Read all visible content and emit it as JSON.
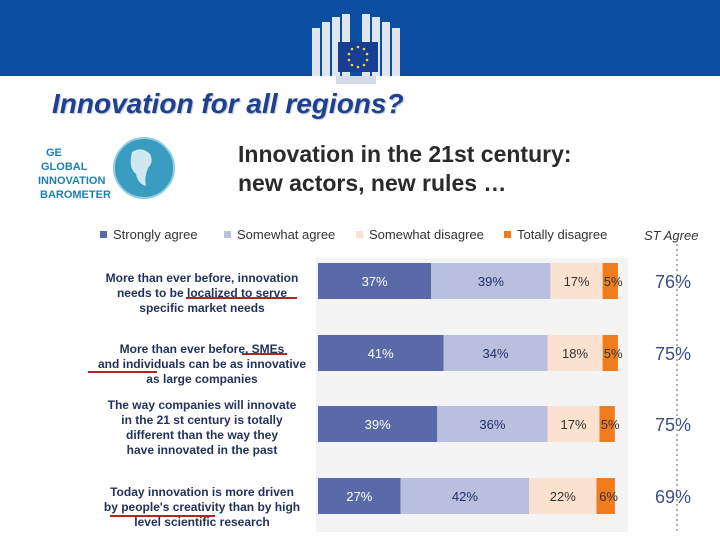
{
  "slide": {
    "title": "Innovation for all regions?",
    "subtitle_line1": "Innovation in the 21st century:",
    "subtitle_line2": "new actors, new rules …"
  },
  "logos": {
    "barometer": {
      "line1": "GE",
      "line2": "GLOBAL",
      "line3": "INNOVATION",
      "line4": "BAROMETER"
    },
    "colors": {
      "banner": "#0b4ea2",
      "eu_yellow": "#f3d23c",
      "barometer_teal": "#3a9cc0"
    }
  },
  "chart_data": {
    "type": "bar",
    "orientation": "horizontal",
    "stacked": true,
    "legend_position": "top",
    "categories": [
      "More than ever before, innovation needs to be localized to serve specific market needs",
      "More than ever before, SMEs and individuals can be as innovative as large companies",
      "The way companies will innovate in the 21 st century is totally different than the way they have innovated in the past",
      "Today innovation is more driven by people's creativity than by high level scientific research"
    ],
    "category_lines": [
      [
        "More than ever before, innovation",
        "needs to be localized to serve",
        "specific market needs"
      ],
      [
        "More than ever before, SMEs",
        "and individuals can be as innovative",
        "as large companies"
      ],
      [
        "The way companies will innovate",
        "in the 21 st century is totally",
        "different than the way they",
        "have innovated in the past"
      ],
      [
        "Today innovation is more driven",
        "by people's creativity than by high",
        "level scientific research"
      ]
    ],
    "series": [
      {
        "name": "Strongly agree",
        "color": "#5a6aa8",
        "values": [
          37,
          41,
          39,
          27
        ],
        "labels": [
          "37%",
          "41%",
          "39%",
          "27%"
        ]
      },
      {
        "name": "Somewhat agree",
        "color": "#b8c0dd",
        "values": [
          39,
          34,
          36,
          42
        ],
        "labels": [
          "39%",
          "34%",
          "36%",
          "42%"
        ]
      },
      {
        "name": "Somewhat disagree",
        "color": "#fbe1cf",
        "values": [
          17,
          18,
          17,
          22
        ],
        "labels": [
          "17%",
          "18%",
          "17%",
          "22%"
        ]
      },
      {
        "name": "Totally disagree",
        "color": "#f07c1d",
        "values": [
          5,
          5,
          5,
          6
        ],
        "labels": [
          "5%",
          "5%",
          "5%",
          "6%"
        ]
      }
    ],
    "st_agree_header": "ST Agree",
    "st_agree": [
      "76%",
      "75%",
      "75%",
      "69%"
    ],
    "xlim": [
      0,
      100
    ],
    "grid": false
  }
}
